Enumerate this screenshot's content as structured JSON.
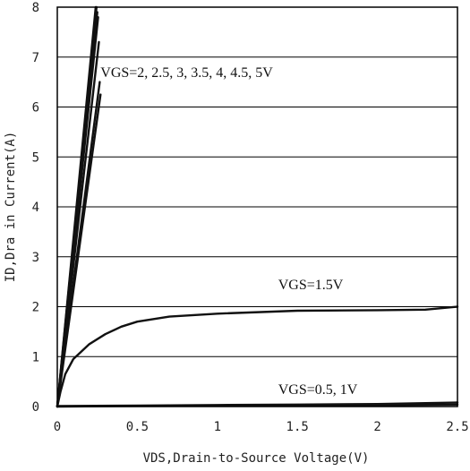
{
  "chart_data": {
    "type": "line",
    "xlabel": "VDS,Drain-to-Source Voltage(V)",
    "ylabel": "ID,Dra in Current(A)",
    "xlim": [
      0,
      2.5
    ],
    "ylim": [
      0,
      8
    ],
    "x_ticks": [
      "0",
      "0.5",
      "1",
      "1.5",
      "2",
      "2.5"
    ],
    "y_ticks": [
      "0",
      "1",
      "2",
      "3",
      "4",
      "5",
      "6",
      "7",
      "8"
    ],
    "grid": {
      "horizontal": true,
      "vertical": false
    },
    "annotations": [
      {
        "text": "VGS=2, 2.5, 3, 3.5, 4, 4.5, 5V",
        "x": 0.27,
        "y": 6.6
      },
      {
        "text": "VGS=1.5V",
        "x": 1.38,
        "y": 2.35
      },
      {
        "text": "VGS=0.5, 1V",
        "x": 1.38,
        "y": 0.25
      }
    ],
    "series": [
      {
        "color": "#6fb3e6",
        "x": [
          0,
          0.24
        ],
        "y": [
          0,
          8.0
        ]
      },
      {
        "color": "#111111",
        "x": [
          0,
          0.245
        ],
        "y": [
          0,
          8.0
        ]
      },
      {
        "color": "#111111",
        "x": [
          0,
          0.25
        ],
        "y": [
          0,
          7.9
        ]
      },
      {
        "color": "#111111",
        "x": [
          0,
          0.255
        ],
        "y": [
          0,
          7.8
        ]
      },
      {
        "color": "#111111",
        "x": [
          0,
          0.26
        ],
        "y": [
          0,
          7.3
        ]
      },
      {
        "color": "#111111",
        "x": [
          0,
          0.265
        ],
        "y": [
          0,
          6.5
        ]
      },
      {
        "color": "#111111",
        "x": [
          0,
          0.27
        ],
        "y": [
          0,
          6.25
        ]
      },
      {
        "color": "#111111",
        "x": [
          0,
          0.02,
          0.05,
          0.1,
          0.2,
          0.3,
          0.4,
          0.5,
          0.7,
          1.0,
          1.5,
          2.0,
          2.3,
          2.5
        ],
        "y": [
          0,
          0.3,
          0.65,
          0.95,
          1.25,
          1.45,
          1.6,
          1.7,
          1.8,
          1.86,
          1.92,
          1.93,
          1.94,
          2.0
        ]
      },
      {
        "color": "#111111",
        "x": [
          0,
          0.5,
          1.0,
          1.5,
          2.0,
          2.5
        ],
        "y": [
          0.01,
          0.02,
          0.03,
          0.04,
          0.05,
          0.08
        ]
      },
      {
        "color": "#111111",
        "x": [
          0,
          0.5,
          1.0,
          1.5,
          2.0,
          2.5
        ],
        "y": [
          0.0,
          0.01,
          0.015,
          0.02,
          0.025,
          0.04
        ]
      }
    ]
  }
}
